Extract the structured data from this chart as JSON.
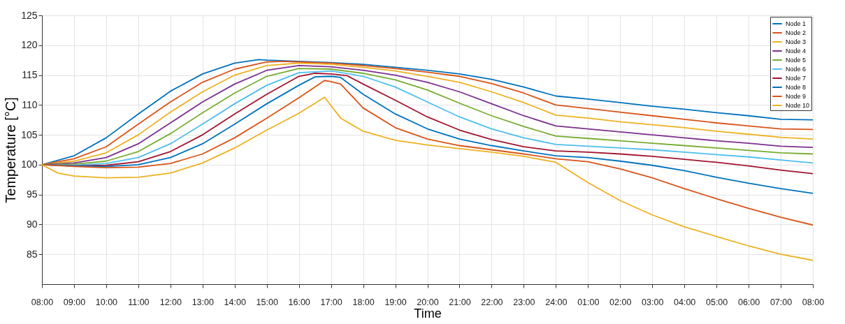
{
  "chart_data": {
    "type": "line",
    "xlabel": "Time",
    "ylabel": "Temperature [°C]",
    "xlim": [
      "2000-01-01T08:00",
      "2000-01-02T08:00"
    ],
    "ylim": [
      80,
      125
    ],
    "xticks": [
      {
        "value": "2000-01-01T08:00",
        "label": "08:00"
      },
      {
        "value": "2000-01-01T09:00",
        "label": "09:00"
      },
      {
        "value": "2000-01-01T10:00",
        "label": "10:00"
      },
      {
        "value": "2000-01-01T11:00",
        "label": "11:00"
      },
      {
        "value": "2000-01-01T12:00",
        "label": "12:00"
      },
      {
        "value": "2000-01-01T13:00",
        "label": "13:00"
      },
      {
        "value": "2000-01-01T14:00",
        "label": "14:00"
      },
      {
        "value": "2000-01-01T15:00",
        "label": "15:00"
      },
      {
        "value": "2000-01-01T16:00",
        "label": "16:00"
      },
      {
        "value": "2000-01-01T17:00",
        "label": "17:00"
      },
      {
        "value": "2000-01-01T18:00",
        "label": "18:00"
      },
      {
        "value": "2000-01-01T19:00",
        "label": "19:00"
      },
      {
        "value": "2000-01-01T20:00",
        "label": "20:00"
      },
      {
        "value": "2000-01-01T21:00",
        "label": "21:00"
      },
      {
        "value": "2000-01-01T22:00",
        "label": "22:00"
      },
      {
        "value": "2000-01-01T23:00",
        "label": "23:00"
      },
      {
        "value": "2000-01-02T00:00",
        "label": "24:00"
      },
      {
        "value": "2000-01-02T01:00",
        "label": "01:00"
      },
      {
        "value": "2000-01-02T02:00",
        "label": "02:00"
      },
      {
        "value": "2000-01-02T03:00",
        "label": "03:00"
      },
      {
        "value": "2000-01-02T04:00",
        "label": "04:00"
      },
      {
        "value": "2000-01-02T05:00",
        "label": "05:00"
      },
      {
        "value": "2000-01-02T06:00",
        "label": "06:00"
      },
      {
        "value": "2000-01-02T07:00",
        "label": "07:00"
      },
      {
        "value": "2000-01-02T08:00",
        "label": "08:00"
      }
    ],
    "yticks": [
      85,
      90,
      95,
      100,
      105,
      110,
      115,
      120,
      125
    ],
    "grid": true,
    "legend": "top right",
    "marker": "none",
    "line_style": "solid",
    "series": [
      {
        "name": "Node 1",
        "color": "#0072bd",
        "x": [
          "2000-01-01T08:00",
          "2000-01-01T09:00",
          "2000-01-01T10:00",
          "2000-01-01T11:00",
          "2000-01-01T12:00",
          "2000-01-01T13:00",
          "2000-01-01T14:00",
          "2000-01-01T14:45",
          "2000-01-01T15:00",
          "2000-01-01T16:00",
          "2000-01-01T17:00",
          "2000-01-01T18:00",
          "2000-01-01T19:00",
          "2000-01-01T20:00",
          "2000-01-01T21:00",
          "2000-01-01T22:00",
          "2000-01-01T23:00",
          "2000-01-02T00:00",
          "2000-01-02T01:00",
          "2000-01-02T02:00",
          "2000-01-02T03:00",
          "2000-01-02T04:00",
          "2000-01-02T05:00",
          "2000-01-02T06:00",
          "2000-01-02T07:00",
          "2000-01-02T08:00"
        ],
        "values": [
          100,
          101.5,
          104.5,
          108.5,
          112.3,
          115.2,
          117,
          117.6,
          117.5,
          117.3,
          117.1,
          116.8,
          116.3,
          115.8,
          115.2,
          114.3,
          113,
          111.5,
          111,
          110.4,
          109.8,
          109.3,
          108.7,
          108.2,
          107.6,
          107.5
        ]
      },
      {
        "name": "Node 2",
        "color": "#d95319",
        "x": [
          "2000-01-01T08:00",
          "2000-01-01T09:00",
          "2000-01-01T10:00",
          "2000-01-01T11:00",
          "2000-01-01T12:00",
          "2000-01-01T13:00",
          "2000-01-01T14:00",
          "2000-01-01T15:00",
          "2000-01-01T15:30",
          "2000-01-01T16:00",
          "2000-01-01T17:00",
          "2000-01-01T18:00",
          "2000-01-01T19:00",
          "2000-01-01T20:00",
          "2000-01-01T21:00",
          "2000-01-01T22:00",
          "2000-01-01T23:00",
          "2000-01-02T00:00",
          "2000-01-02T01:00",
          "2000-01-02T02:00",
          "2000-01-02T03:00",
          "2000-01-02T04:00",
          "2000-01-02T05:00",
          "2000-01-02T06:00",
          "2000-01-02T07:00",
          "2000-01-02T08:00"
        ],
        "values": [
          100,
          101,
          103,
          106.8,
          110.5,
          113.8,
          116,
          117.2,
          117.3,
          117.2,
          117,
          116.6,
          116.1,
          115.5,
          114.8,
          113.6,
          112,
          110,
          109.4,
          108.8,
          108.2,
          107.6,
          107,
          106.5,
          106,
          105.9
        ]
      },
      {
        "name": "Node 3",
        "color": "#edb120",
        "x": [
          "2000-01-01T08:00",
          "2000-01-01T09:00",
          "2000-01-01T10:00",
          "2000-01-01T11:00",
          "2000-01-01T12:00",
          "2000-01-01T13:00",
          "2000-01-01T14:00",
          "2000-01-01T15:00",
          "2000-01-01T16:00",
          "2000-01-01T17:00",
          "2000-01-01T18:00",
          "2000-01-01T19:00",
          "2000-01-01T20:00",
          "2000-01-01T21:00",
          "2000-01-01T22:00",
          "2000-01-01T23:00",
          "2000-01-02T00:00",
          "2000-01-02T01:00",
          "2000-01-02T02:00",
          "2000-01-02T03:00",
          "2000-01-02T04:00",
          "2000-01-02T05:00",
          "2000-01-02T06:00",
          "2000-01-02T07:00",
          "2000-01-02T08:00"
        ],
        "values": [
          100,
          100.6,
          102,
          105,
          108.8,
          112.2,
          115,
          116.6,
          117,
          116.8,
          116.3,
          115.7,
          114.8,
          113.8,
          112.2,
          110.4,
          108.3,
          107.8,
          107.2,
          106.7,
          106.2,
          105.6,
          105.1,
          104.6,
          104.3
        ]
      },
      {
        "name": "Node 4",
        "color": "#7e2f8e",
        "x": [
          "2000-01-01T08:00",
          "2000-01-01T09:00",
          "2000-01-01T10:00",
          "2000-01-01T11:00",
          "2000-01-01T12:00",
          "2000-01-01T13:00",
          "2000-01-01T14:00",
          "2000-01-01T15:00",
          "2000-01-01T16:00",
          "2000-01-01T17:00",
          "2000-01-01T18:00",
          "2000-01-01T19:00",
          "2000-01-01T20:00",
          "2000-01-01T21:00",
          "2000-01-01T22:00",
          "2000-01-01T23:00",
          "2000-01-02T00:00",
          "2000-01-02T01:00",
          "2000-01-02T02:00",
          "2000-01-02T03:00",
          "2000-01-02T04:00",
          "2000-01-02T05:00",
          "2000-01-02T06:00",
          "2000-01-02T07:00",
          "2000-01-02T08:00"
        ],
        "values": [
          100,
          100.3,
          101.2,
          103.5,
          107,
          110.5,
          113.5,
          115.8,
          116.6,
          116.4,
          115.8,
          115,
          113.8,
          112.2,
          110.2,
          108.2,
          106.5,
          106,
          105.5,
          105,
          104.5,
          104,
          103.6,
          103.1,
          102.9
        ]
      },
      {
        "name": "Node 5",
        "color": "#77ac30",
        "x": [
          "2000-01-01T08:00",
          "2000-01-01T09:00",
          "2000-01-01T10:00",
          "2000-01-01T11:00",
          "2000-01-01T12:00",
          "2000-01-01T13:00",
          "2000-01-01T14:00",
          "2000-01-01T15:00",
          "2000-01-01T16:00",
          "2000-01-01T17:00",
          "2000-01-01T18:00",
          "2000-01-01T19:00",
          "2000-01-01T20:00",
          "2000-01-01T21:00",
          "2000-01-01T22:00",
          "2000-01-01T23:00",
          "2000-01-02T00:00",
          "2000-01-02T01:00",
          "2000-01-02T02:00",
          "2000-01-02T03:00",
          "2000-01-02T04:00",
          "2000-01-02T05:00",
          "2000-01-02T06:00",
          "2000-01-02T07:00",
          "2000-01-02T08:00"
        ],
        "values": [
          100,
          100.1,
          100.6,
          102.2,
          105.2,
          108.7,
          112,
          114.8,
          116.1,
          116,
          115.3,
          114.2,
          112.5,
          110.3,
          108.2,
          106.4,
          104.8,
          104.4,
          104,
          103.6,
          103.2,
          102.8,
          102.4,
          102,
          101.8
        ]
      },
      {
        "name": "Node 6",
        "color": "#4dbeee",
        "x": [
          "2000-01-01T08:00",
          "2000-01-01T09:00",
          "2000-01-01T10:00",
          "2000-01-01T11:00",
          "2000-01-01T12:00",
          "2000-01-01T13:00",
          "2000-01-01T14:00",
          "2000-01-01T15:00",
          "2000-01-01T16:00",
          "2000-01-01T17:00",
          "2000-01-01T18:00",
          "2000-01-01T19:00",
          "2000-01-01T20:00",
          "2000-01-01T21:00",
          "2000-01-01T22:00",
          "2000-01-01T23:00",
          "2000-01-02T00:00",
          "2000-01-02T01:00",
          "2000-01-02T02:00",
          "2000-01-02T03:00",
          "2000-01-02T04:00",
          "2000-01-02T05:00",
          "2000-01-02T06:00",
          "2000-01-02T07:00",
          "2000-01-02T08:00"
        ],
        "values": [
          100,
          99.9,
          100.2,
          101.2,
          103.5,
          106.8,
          110.2,
          113.3,
          115.4,
          115.7,
          114.8,
          113,
          110.5,
          108,
          106,
          104.5,
          103.4,
          103.1,
          102.8,
          102.5,
          102.1,
          101.7,
          101.3,
          100.8,
          100.3
        ]
      },
      {
        "name": "Node 7",
        "color": "#a2142f",
        "x": [
          "2000-01-01T08:00",
          "2000-01-01T09:00",
          "2000-01-01T10:00",
          "2000-01-01T11:00",
          "2000-01-01T12:00",
          "2000-01-01T13:00",
          "2000-01-01T14:00",
          "2000-01-01T15:00",
          "2000-01-01T16:00",
          "2000-01-01T16:30",
          "2000-01-01T17:00",
          "2000-01-01T17:30",
          "2000-01-01T18:00",
          "2000-01-01T19:00",
          "2000-01-01T20:00",
          "2000-01-01T21:00",
          "2000-01-01T22:00",
          "2000-01-01T23:00",
          "2000-01-02T00:00",
          "2000-01-02T01:00",
          "2000-01-02T02:00",
          "2000-01-02T03:00",
          "2000-01-02T04:00",
          "2000-01-02T05:00",
          "2000-01-02T06:00",
          "2000-01-02T07:00",
          "2000-01-02T08:00"
        ],
        "values": [
          100,
          99.8,
          99.9,
          100.5,
          102.2,
          105,
          108.5,
          111.8,
          114.8,
          115.3,
          115.2,
          114.9,
          113.5,
          110.8,
          108,
          105.8,
          104.2,
          103,
          102.3,
          102.1,
          101.8,
          101.4,
          100.9,
          100.4,
          99.8,
          99.1,
          98.5
        ]
      },
      {
        "name": "Node 8",
        "color": "#0072bd",
        "x": [
          "2000-01-01T08:00",
          "2000-01-01T09:00",
          "2000-01-01T10:00",
          "2000-01-01T11:00",
          "2000-01-01T12:00",
          "2000-01-01T13:00",
          "2000-01-01T14:00",
          "2000-01-01T15:00",
          "2000-01-01T16:00",
          "2000-01-01T16:30",
          "2000-01-01T17:00",
          "2000-01-01T17:18",
          "2000-01-01T18:00",
          "2000-01-01T19:00",
          "2000-01-01T20:00",
          "2000-01-01T21:00",
          "2000-01-01T22:00",
          "2000-01-01T23:00",
          "2000-01-02T00:00",
          "2000-01-02T01:00",
          "2000-01-02T02:00",
          "2000-01-02T03:00",
          "2000-01-02T04:00",
          "2000-01-02T05:00",
          "2000-01-02T06:00",
          "2000-01-02T07:00",
          "2000-01-02T08:00"
        ],
        "values": [
          100,
          99.8,
          99.7,
          100,
          101.2,
          103.5,
          106.8,
          110.2,
          113.3,
          114.7,
          114.8,
          114.6,
          111.8,
          108.5,
          106,
          104.3,
          103.2,
          102.3,
          101.5,
          101.2,
          100.6,
          99.9,
          99,
          97.9,
          96.9,
          96,
          95.2
        ]
      },
      {
        "name": "Node 9",
        "color": "#d95319",
        "x": [
          "2000-01-01T08:00",
          "2000-01-01T09:00",
          "2000-01-01T10:00",
          "2000-01-01T11:00",
          "2000-01-01T12:00",
          "2000-01-01T13:00",
          "2000-01-01T14:00",
          "2000-01-01T15:00",
          "2000-01-01T16:00",
          "2000-01-01T16:48",
          "2000-01-01T17:00",
          "2000-01-01T17:18",
          "2000-01-01T18:00",
          "2000-01-01T19:00",
          "2000-01-01T20:00",
          "2000-01-01T21:00",
          "2000-01-01T22:00",
          "2000-01-01T23:00",
          "2000-01-02T00:00",
          "2000-01-02T01:00",
          "2000-01-02T02:00",
          "2000-01-02T03:00",
          "2000-01-02T04:00",
          "2000-01-02T05:00",
          "2000-01-02T06:00",
          "2000-01-02T07:00",
          "2000-01-02T08:00"
        ],
        "values": [
          100,
          99.7,
          99.5,
          99.6,
          100.2,
          101.8,
          104.5,
          107.8,
          111.2,
          114.1,
          113.9,
          113.5,
          109.5,
          106.2,
          104.3,
          103.2,
          102.5,
          101.8,
          101,
          100.5,
          99.3,
          97.8,
          96,
          94.3,
          92.7,
          91.2,
          89.9
        ]
      },
      {
        "name": "Node 10",
        "color": "#edb120",
        "x": [
          "2000-01-01T08:00",
          "2000-01-01T08:30",
          "2000-01-01T09:00",
          "2000-01-01T10:00",
          "2000-01-01T11:00",
          "2000-01-01T12:00",
          "2000-01-01T13:00",
          "2000-01-01T14:00",
          "2000-01-01T15:00",
          "2000-01-01T16:00",
          "2000-01-01T16:48",
          "2000-01-01T17:18",
          "2000-01-01T18:00",
          "2000-01-01T19:00",
          "2000-01-01T20:00",
          "2000-01-01T21:00",
          "2000-01-01T22:00",
          "2000-01-01T23:00",
          "2000-01-02T00:00",
          "2000-01-02T01:00",
          "2000-01-02T02:00",
          "2000-01-02T03:00",
          "2000-01-02T04:00",
          "2000-01-02T05:00",
          "2000-01-02T06:00",
          "2000-01-02T07:00",
          "2000-01-02T08:00"
        ],
        "values": [
          100,
          98.6,
          98.1,
          97.8,
          97.9,
          98.6,
          100.3,
          102.8,
          105.8,
          108.6,
          111.3,
          107.8,
          105.6,
          104.1,
          103.3,
          102.7,
          102.1,
          101.4,
          100.4,
          97,
          94,
          91.6,
          89.6,
          88,
          86.4,
          85,
          84
        ]
      }
    ]
  }
}
